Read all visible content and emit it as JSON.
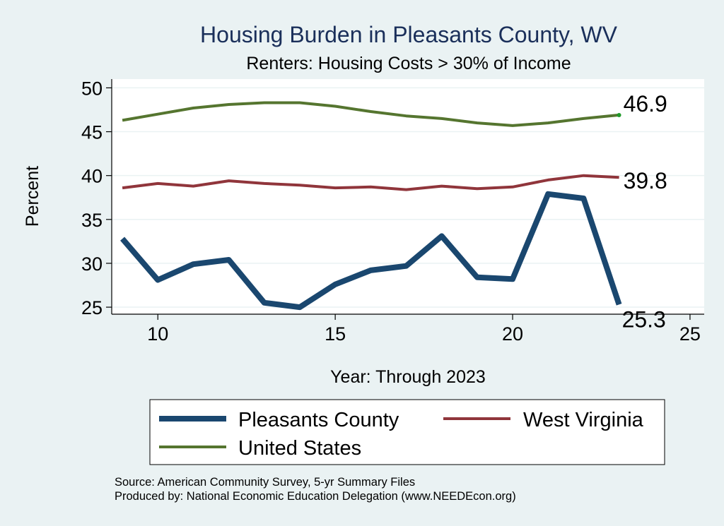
{
  "chart_data": {
    "type": "line",
    "title": "Housing Burden in Pleasants County, WV",
    "subtitle": "Renters: Housing Costs > 30% of Income",
    "xlabel": "Year: Through 2023",
    "ylabel": "Percent",
    "xlim": [
      8.7,
      25.4
    ],
    "ylim": [
      24.2,
      51
    ],
    "x_ticks": [
      10,
      15,
      20,
      25
    ],
    "y_ticks": [
      25,
      30,
      35,
      40,
      45,
      50
    ],
    "grid": true,
    "legend_position": "bottom",
    "x": [
      9,
      10,
      11,
      12,
      13,
      14,
      15,
      16,
      17,
      18,
      19,
      20,
      21,
      22,
      23
    ],
    "series": [
      {
        "name": "Pleasants County",
        "color": "#1a476f",
        "values": [
          32.8,
          28.1,
          29.9,
          30.4,
          25.5,
          25.0,
          27.6,
          29.2,
          29.7,
          33.1,
          28.4,
          28.2,
          37.9,
          37.4,
          25.3
        ],
        "end_label": "25.3"
      },
      {
        "name": "West Virginia",
        "color": "#90353b",
        "values": [
          38.6,
          39.1,
          38.8,
          39.4,
          39.1,
          38.9,
          38.6,
          38.7,
          38.4,
          38.8,
          38.5,
          38.7,
          39.5,
          40.0,
          39.8
        ],
        "end_label": "39.8"
      },
      {
        "name": "United States",
        "color": "#55752f",
        "values": [
          46.3,
          47.0,
          47.7,
          48.1,
          48.3,
          48.3,
          47.9,
          47.3,
          46.8,
          46.5,
          46.0,
          45.7,
          46.0,
          46.5,
          46.9
        ],
        "end_label": "46.9"
      }
    ],
    "notes": [
      "Source: American Community Survey, 5-yr Summary Files",
      "Produced by: National Economic Education Delegation (www.NEEDEcon.org)"
    ]
  }
}
